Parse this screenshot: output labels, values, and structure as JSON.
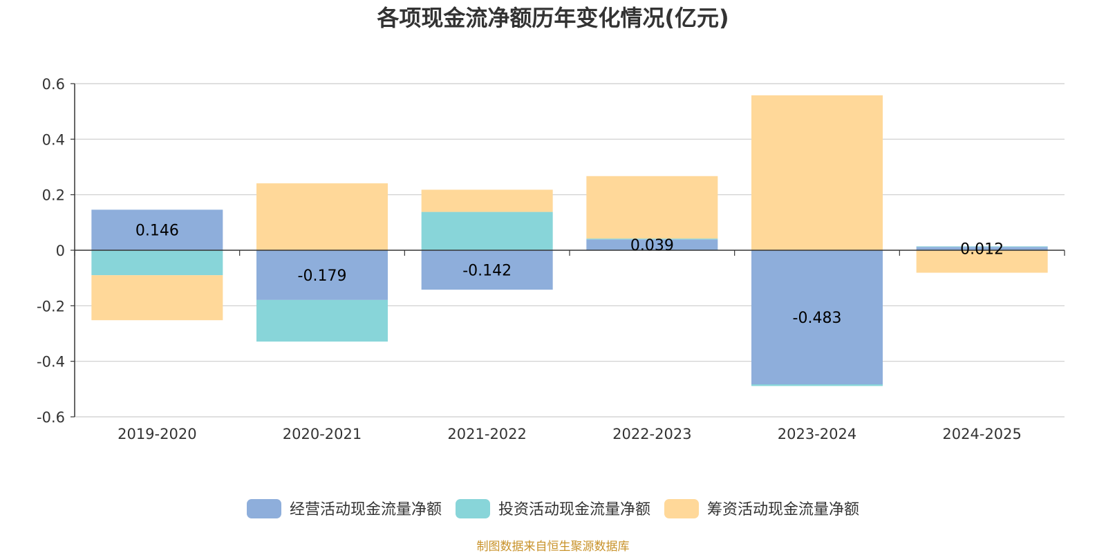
{
  "chart_data": {
    "type": "bar",
    "stacked": true,
    "title": "各项现金流净额历年变化情况(亿元)",
    "categories": [
      "2019-2020",
      "2020-2021",
      "2021-2022",
      "2022-2023",
      "2023-2024",
      "2024-2025"
    ],
    "series": [
      {
        "name": "经营活动现金流量净额",
        "color": "#8eaedb",
        "values": [
          0.146,
          -0.179,
          -0.142,
          0.039,
          -0.483,
          0.012
        ]
      },
      {
        "name": "投资活动现金流量净额",
        "color": "#88d5d9",
        "values": [
          -0.09,
          -0.15,
          0.138,
          0.003,
          -0.006,
          0.002
        ]
      },
      {
        "name": "筹资活动现金流量净额",
        "color": "#ffd899",
        "values": [
          -0.162,
          0.241,
          0.08,
          0.225,
          0.558,
          -0.081
        ]
      }
    ],
    "data_labels": [
      "0.146",
      "-0.179",
      "-0.142",
      "0.039",
      "-0.483",
      "0.012"
    ],
    "y_ticks": [
      "0.6",
      "0.4",
      "0.2",
      "0",
      "-0.2",
      "-0.4",
      "-0.6"
    ],
    "ylim": [
      -0.6,
      0.6
    ],
    "grid": true,
    "legend_position": "bottom"
  },
  "source_note": "制图数据来自恒生聚源数据库",
  "colors": {
    "source_note": "#c8922a",
    "grid": "#cccccc",
    "axis": "#333333"
  }
}
